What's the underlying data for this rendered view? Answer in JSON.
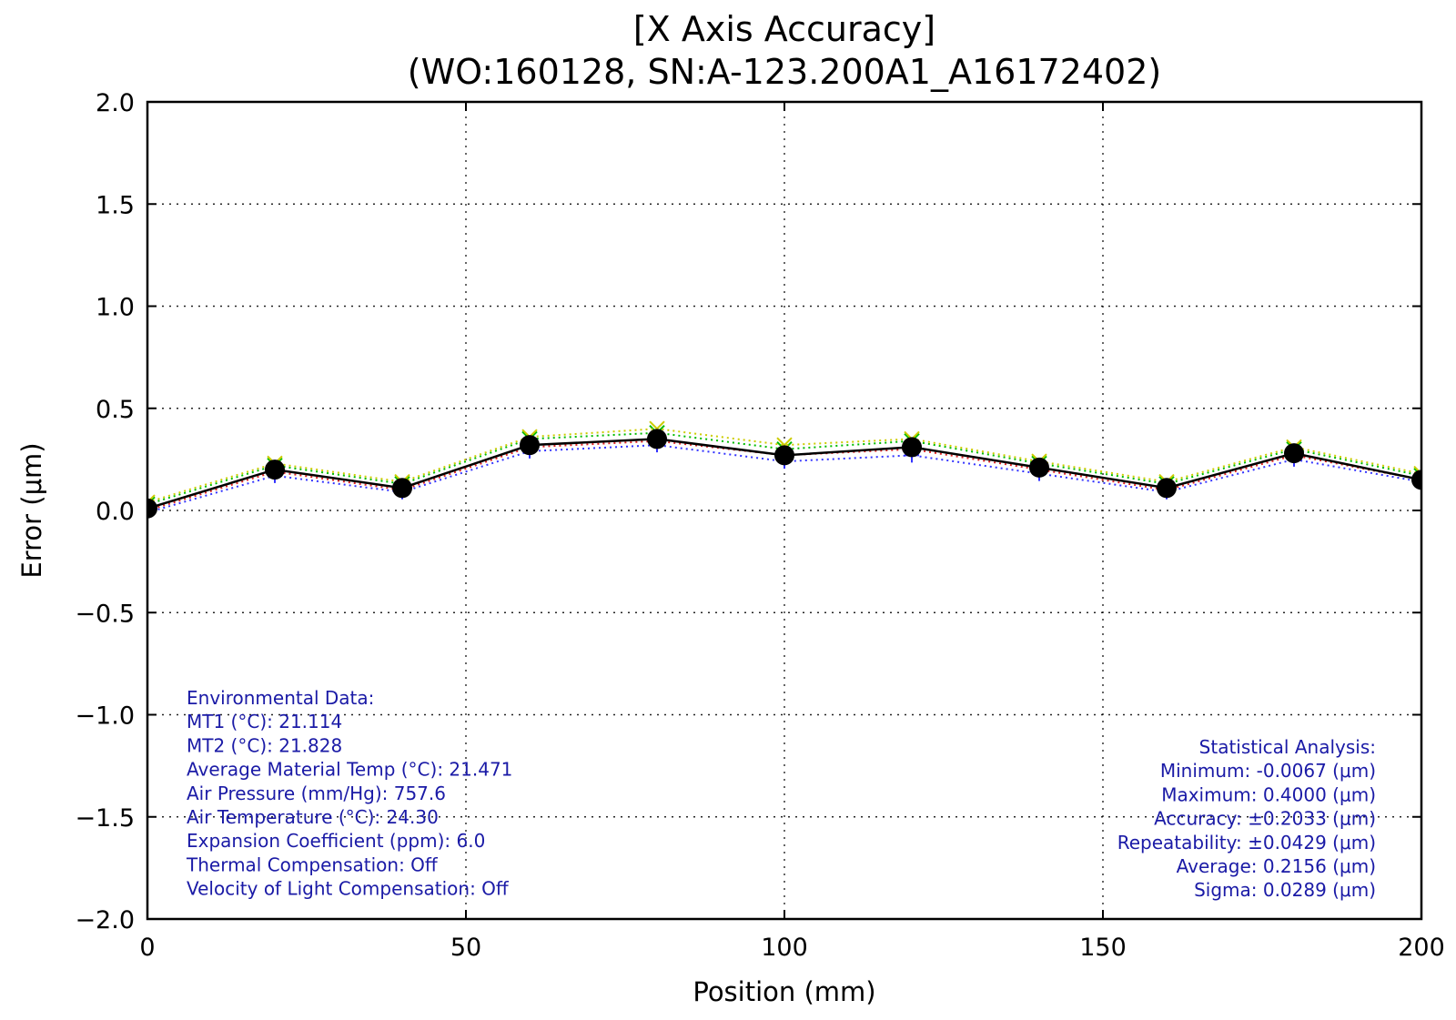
{
  "chart_data": {
    "type": "line",
    "title_line1": "[X Axis Accuracy]",
    "title_line2": "(WO:160128, SN:A-123.200A1_A16172402)",
    "xlabel": "Position (mm)",
    "ylabel": "Error (μm)",
    "xlim": [
      0,
      200
    ],
    "ylim": [
      -2.0,
      2.0
    ],
    "xticks": [
      0,
      50,
      100,
      150,
      200
    ],
    "yticks": [
      2.0,
      1.5,
      1.0,
      0.5,
      0.0,
      -0.5,
      -1.0,
      -1.5,
      -2.0
    ],
    "xtick_labels": [
      "0",
      "50",
      "100",
      "150",
      "200"
    ],
    "ytick_labels": [
      "2.0",
      "1.5",
      "1.0",
      "0.5",
      "0.0",
      "−0.5",
      "−1.0",
      "−1.5",
      "−2.0"
    ],
    "grid": true,
    "x": [
      0,
      20,
      40,
      60,
      80,
      100,
      120,
      140,
      160,
      180,
      200
    ],
    "series": [
      {
        "values": [
          0.01,
          0.2,
          0.11,
          0.32,
          0.35,
          0.27,
          0.31,
          0.21,
          0.11,
          0.28,
          0.15
        ],
        "color": "#000000",
        "style": "solid",
        "marker": "circle"
      },
      {
        "values": [
          0.03,
          0.22,
          0.13,
          0.35,
          0.38,
          0.3,
          0.34,
          0.23,
          0.13,
          0.3,
          0.17
        ],
        "color": "#00bb00",
        "style": "dotted",
        "marker": "x"
      },
      {
        "values": [
          0.04,
          0.23,
          0.14,
          0.36,
          0.4,
          0.32,
          0.35,
          0.24,
          0.14,
          0.31,
          0.18
        ],
        "color": "#cccc00",
        "style": "dotted",
        "marker": "x"
      },
      {
        "values": [
          0.0,
          0.19,
          0.1,
          0.31,
          0.34,
          0.27,
          0.3,
          0.2,
          0.1,
          0.27,
          0.15
        ],
        "color": "#dd2222",
        "style": "dotted",
        "marker": "+"
      },
      {
        "values": [
          -0.01,
          0.17,
          0.09,
          0.29,
          0.32,
          0.24,
          0.27,
          0.18,
          0.09,
          0.25,
          0.14
        ],
        "color": "#3333ff",
        "style": "dotted",
        "marker": "+"
      }
    ],
    "environmental": [
      "Environmental Data:",
      "MT1 (°C): 21.114",
      "MT2 (°C): 21.828",
      "Average Material Temp (°C): 21.471",
      "Air Pressure (mm/Hg): 757.6",
      "Air Temperature (°C): 24.30",
      "Expansion Coefficient (ppm): 6.0",
      "Thermal Compensation: Off",
      "Velocity of Light Compensation: Off"
    ],
    "statistics": [
      "Statistical Analysis:",
      "Minimum: -0.0067 (μm)",
      "Maximum: 0.4000 (μm)",
      "Accuracy: ±0.2033 (μm)",
      "Repeatability: ±0.0429 (μm)",
      "Average: 0.2156 (μm)",
      "Sigma: 0.0289 (μm)"
    ]
  }
}
